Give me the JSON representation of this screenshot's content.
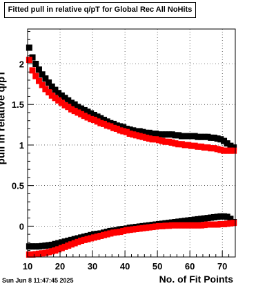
{
  "title": "Fitted pull in relative q/pT for Global Rec All NoHits",
  "xlabel": "No. of Fit Points",
  "ylabel": "pull in relative q/pT",
  "timestamp": "Sun Jun  8 11:47:45 2025",
  "colors": {
    "series_black": "#000000",
    "series_red": "#ff0000",
    "grid": "#000000"
  },
  "chart_data": {
    "type": "scatter",
    "title": "Fitted pull in relative q/pT for Global Rec All NoHits",
    "xlabel": "No. of Fit Points",
    "ylabel": "pull in relative q/pT",
    "xlim": [
      10,
      74
    ],
    "ylim": [
      -0.38,
      2.43
    ],
    "grid": true,
    "xticks": [
      10,
      20,
      30,
      40,
      50,
      60,
      70
    ],
    "yticks": [
      0,
      0.5,
      1,
      1.5,
      2
    ],
    "xtick_labels": [
      "10",
      "20",
      "30",
      "40",
      "50",
      "60",
      "70"
    ],
    "ytick_labels": [
      "0",
      "0.5",
      "1",
      "1.5",
      "2"
    ],
    "series": [
      {
        "color": "#000000",
        "points": [
          [
            10.5,
            2.2
          ],
          [
            11.5,
            2.08
          ],
          [
            12.5,
            2.0
          ],
          [
            13.5,
            1.93
          ],
          [
            14.5,
            1.87
          ],
          [
            15.5,
            1.82
          ],
          [
            16.5,
            1.77
          ],
          [
            17.5,
            1.72
          ],
          [
            18.5,
            1.68
          ],
          [
            19.5,
            1.64
          ],
          [
            20.5,
            1.61
          ],
          [
            21.5,
            1.58
          ],
          [
            22.5,
            1.55
          ],
          [
            23.5,
            1.52
          ],
          [
            24.5,
            1.5
          ],
          [
            25.5,
            1.47
          ],
          [
            26.5,
            1.45
          ],
          [
            27.5,
            1.43
          ],
          [
            28.5,
            1.41
          ],
          [
            29.5,
            1.39
          ],
          [
            30.5,
            1.37
          ],
          [
            31.5,
            1.35
          ],
          [
            32.5,
            1.33
          ],
          [
            33.5,
            1.31
          ],
          [
            34.5,
            1.29
          ],
          [
            35.5,
            1.27
          ],
          [
            36.5,
            1.26
          ],
          [
            37.5,
            1.24
          ],
          [
            38.5,
            1.23
          ],
          [
            39.5,
            1.22
          ],
          [
            40.5,
            1.2
          ],
          [
            41.5,
            1.19
          ],
          [
            42.5,
            1.18
          ],
          [
            43.5,
            1.17
          ],
          [
            44.5,
            1.17
          ],
          [
            45.5,
            1.16
          ],
          [
            46.5,
            1.15
          ],
          [
            47.5,
            1.15
          ],
          [
            48.5,
            1.14
          ],
          [
            49.5,
            1.14
          ],
          [
            50.5,
            1.13
          ],
          [
            51.5,
            1.13
          ],
          [
            52.5,
            1.13
          ],
          [
            53.5,
            1.13
          ],
          [
            54.5,
            1.13
          ],
          [
            55.5,
            1.12
          ],
          [
            56.5,
            1.12
          ],
          [
            57.5,
            1.11
          ],
          [
            58.5,
            1.11
          ],
          [
            59.5,
            1.11
          ],
          [
            60.5,
            1.11
          ],
          [
            61.5,
            1.11
          ],
          [
            62.5,
            1.1
          ],
          [
            63.5,
            1.1
          ],
          [
            64.5,
            1.1
          ],
          [
            65.5,
            1.1
          ],
          [
            66.5,
            1.09
          ],
          [
            67.5,
            1.09
          ],
          [
            68.5,
            1.08
          ],
          [
            69.5,
            1.07
          ],
          [
            70.5,
            1.05
          ],
          [
            71.5,
            1.02
          ],
          [
            72.5,
            0.99
          ],
          [
            73.5,
            0.97
          ],
          [
            10.5,
            -0.25
          ],
          [
            11.5,
            -0.25
          ],
          [
            12.5,
            -0.25
          ],
          [
            13.5,
            -0.25
          ],
          [
            14.5,
            -0.245
          ],
          [
            15.5,
            -0.24
          ],
          [
            16.5,
            -0.235
          ],
          [
            17.5,
            -0.23
          ],
          [
            18.5,
            -0.22
          ],
          [
            19.5,
            -0.21
          ],
          [
            20.5,
            -0.2
          ],
          [
            21.5,
            -0.19
          ],
          [
            22.5,
            -0.18
          ],
          [
            23.5,
            -0.17
          ],
          [
            24.5,
            -0.16
          ],
          [
            25.5,
            -0.15
          ],
          [
            26.5,
            -0.14
          ],
          [
            27.5,
            -0.13
          ],
          [
            28.5,
            -0.12
          ],
          [
            29.5,
            -0.11
          ],
          [
            30.5,
            -0.1
          ],
          [
            31.5,
            -0.095
          ],
          [
            32.5,
            -0.09
          ],
          [
            33.5,
            -0.08
          ],
          [
            34.5,
            -0.07
          ],
          [
            35.5,
            -0.06
          ],
          [
            36.5,
            -0.055
          ],
          [
            37.5,
            -0.05
          ],
          [
            38.5,
            -0.04
          ],
          [
            39.5,
            -0.035
          ],
          [
            40.5,
            -0.03
          ],
          [
            41.5,
            -0.02
          ],
          [
            42.5,
            -0.015
          ],
          [
            43.5,
            -0.01
          ],
          [
            44.5,
            -0.005
          ],
          [
            45.5,
            0.0
          ],
          [
            46.5,
            0.005
          ],
          [
            47.5,
            0.01
          ],
          [
            48.5,
            0.015
          ],
          [
            49.5,
            0.02
          ],
          [
            50.5,
            0.025
          ],
          [
            51.5,
            0.03
          ],
          [
            52.5,
            0.035
          ],
          [
            53.5,
            0.04
          ],
          [
            54.5,
            0.045
          ],
          [
            55.5,
            0.05
          ],
          [
            56.5,
            0.055
          ],
          [
            57.5,
            0.06
          ],
          [
            58.5,
            0.065
          ],
          [
            59.5,
            0.07
          ],
          [
            60.5,
            0.075
          ],
          [
            61.5,
            0.08
          ],
          [
            62.5,
            0.085
          ],
          [
            63.5,
            0.09
          ],
          [
            64.5,
            0.095
          ],
          [
            65.5,
            0.1
          ],
          [
            66.5,
            0.105
          ],
          [
            67.5,
            0.11
          ],
          [
            68.5,
            0.115
          ],
          [
            69.5,
            0.12
          ],
          [
            70.5,
            0.12
          ],
          [
            71.5,
            0.115
          ],
          [
            72.5,
            0.09
          ],
          [
            73.5,
            0.05
          ]
        ]
      },
      {
        "color": "#ff0000",
        "points": [
          [
            10.5,
            2.05
          ],
          [
            11.5,
            1.92
          ],
          [
            12.5,
            1.85
          ],
          [
            13.5,
            1.79
          ],
          [
            14.5,
            1.74
          ],
          [
            15.5,
            1.69
          ],
          [
            16.5,
            1.65
          ],
          [
            17.5,
            1.61
          ],
          [
            18.5,
            1.58
          ],
          [
            19.5,
            1.55
          ],
          [
            20.5,
            1.52
          ],
          [
            21.5,
            1.49
          ],
          [
            22.5,
            1.47
          ],
          [
            23.5,
            1.44
          ],
          [
            24.5,
            1.42
          ],
          [
            25.5,
            1.4
          ],
          [
            26.5,
            1.38
          ],
          [
            27.5,
            1.36
          ],
          [
            28.5,
            1.34
          ],
          [
            29.5,
            1.32
          ],
          [
            30.5,
            1.31
          ],
          [
            31.5,
            1.29
          ],
          [
            32.5,
            1.27
          ],
          [
            33.5,
            1.26
          ],
          [
            34.5,
            1.24
          ],
          [
            35.5,
            1.23
          ],
          [
            36.5,
            1.21
          ],
          [
            37.5,
            1.2
          ],
          [
            38.5,
            1.18
          ],
          [
            39.5,
            1.17
          ],
          [
            40.5,
            1.16
          ],
          [
            41.5,
            1.14
          ],
          [
            42.5,
            1.13
          ],
          [
            43.5,
            1.12
          ],
          [
            44.5,
            1.11
          ],
          [
            45.5,
            1.1
          ],
          [
            46.5,
            1.09
          ],
          [
            47.5,
            1.08
          ],
          [
            48.5,
            1.07
          ],
          [
            49.5,
            1.07
          ],
          [
            50.5,
            1.06
          ],
          [
            51.5,
            1.05
          ],
          [
            52.5,
            1.04
          ],
          [
            53.5,
            1.04
          ],
          [
            54.5,
            1.03
          ],
          [
            55.5,
            1.02
          ],
          [
            56.5,
            1.01
          ],
          [
            57.5,
            1.01
          ],
          [
            58.5,
            1.0
          ],
          [
            59.5,
            1.0
          ],
          [
            60.5,
            0.99
          ],
          [
            61.5,
            0.99
          ],
          [
            62.5,
            0.98
          ],
          [
            63.5,
            0.98
          ],
          [
            64.5,
            0.97
          ],
          [
            65.5,
            0.97
          ],
          [
            66.5,
            0.96
          ],
          [
            67.5,
            0.96
          ],
          [
            68.5,
            0.95
          ],
          [
            69.5,
            0.94
          ],
          [
            70.5,
            0.93
          ],
          [
            71.5,
            0.93
          ],
          [
            72.5,
            0.93
          ],
          [
            73.5,
            0.93
          ],
          [
            10.5,
            -0.35
          ],
          [
            11.5,
            -0.35
          ],
          [
            12.5,
            -0.345
          ],
          [
            13.5,
            -0.34
          ],
          [
            14.5,
            -0.335
          ],
          [
            15.5,
            -0.33
          ],
          [
            16.5,
            -0.32
          ],
          [
            17.5,
            -0.31
          ],
          [
            18.5,
            -0.3
          ],
          [
            19.5,
            -0.285
          ],
          [
            20.5,
            -0.27
          ],
          [
            21.5,
            -0.255
          ],
          [
            22.5,
            -0.24
          ],
          [
            23.5,
            -0.225
          ],
          [
            24.5,
            -0.21
          ],
          [
            25.5,
            -0.195
          ],
          [
            26.5,
            -0.18
          ],
          [
            27.5,
            -0.17
          ],
          [
            28.5,
            -0.16
          ],
          [
            29.5,
            -0.15
          ],
          [
            30.5,
            -0.14
          ],
          [
            31.5,
            -0.13
          ],
          [
            32.5,
            -0.12
          ],
          [
            33.5,
            -0.11
          ],
          [
            34.5,
            -0.1
          ],
          [
            35.5,
            -0.09
          ],
          [
            36.5,
            -0.08
          ],
          [
            37.5,
            -0.075
          ],
          [
            38.5,
            -0.07
          ],
          [
            39.5,
            -0.06
          ],
          [
            40.5,
            -0.05
          ],
          [
            41.5,
            -0.045
          ],
          [
            42.5,
            -0.04
          ],
          [
            43.5,
            -0.035
          ],
          [
            44.5,
            -0.03
          ],
          [
            45.5,
            -0.025
          ],
          [
            46.5,
            -0.02
          ],
          [
            47.5,
            -0.015
          ],
          [
            48.5,
            -0.01
          ],
          [
            49.5,
            -0.005
          ],
          [
            50.5,
            0.0
          ],
          [
            51.5,
            0.0
          ],
          [
            52.5,
            0.005
          ],
          [
            53.5,
            0.005
          ],
          [
            54.5,
            0.01
          ],
          [
            55.5,
            0.01
          ],
          [
            56.5,
            0.01
          ],
          [
            57.5,
            0.01
          ],
          [
            58.5,
            0.01
          ],
          [
            59.5,
            0.01
          ],
          [
            60.5,
            0.01
          ],
          [
            61.5,
            0.01
          ],
          [
            62.5,
            0.01
          ],
          [
            63.5,
            0.01
          ],
          [
            64.5,
            0.015
          ],
          [
            65.5,
            0.02
          ],
          [
            66.5,
            0.02
          ],
          [
            67.5,
            0.02
          ],
          [
            68.5,
            0.02
          ],
          [
            69.5,
            0.025
          ],
          [
            70.5,
            0.025
          ],
          [
            71.5,
            0.03
          ],
          [
            72.5,
            0.035
          ],
          [
            73.5,
            0.04
          ]
        ]
      }
    ]
  }
}
